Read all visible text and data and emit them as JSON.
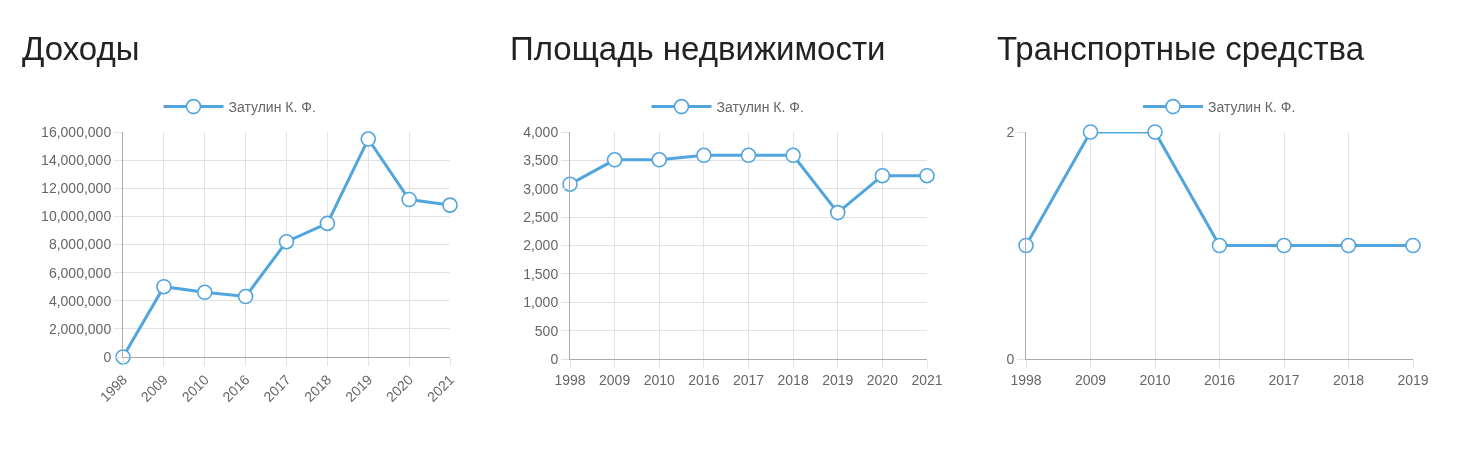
{
  "chart_data": [
    {
      "type": "line",
      "title": "Доходы",
      "categories": [
        "1998",
        "2009",
        "2010",
        "2016",
        "2017",
        "2018",
        "2019",
        "2020",
        "2021"
      ],
      "series": [
        {
          "name": "Затулин К. Ф.",
          "color": "#51a5de",
          "values": [
            0,
            5000000,
            4600000,
            4300000,
            8200000,
            9500000,
            15500000,
            11200000,
            10800000
          ]
        }
      ],
      "ylim": [
        0,
        16000000
      ],
      "yticks": [
        0,
        {
          "value": 2000000,
          "label": "2,000,000"
        },
        {
          "value": 4000000,
          "label": "4,000,000"
        },
        {
          "value": 6000000,
          "label": "6,000,000"
        },
        {
          "value": 8000000,
          "label": "8,000,000"
        },
        {
          "value": 10000000,
          "label": "10,000,000"
        },
        {
          "value": 12000000,
          "label": "12,000,000"
        },
        {
          "value": 14000000,
          "label": "14,000,000"
        },
        {
          "value": 16000000,
          "label": "16,000,000"
        }
      ],
      "grid": true,
      "legend": "top",
      "marker": "circle"
    },
    {
      "type": "line",
      "title": "Площадь недвижимости",
      "categories": [
        "1998",
        "2009",
        "2010",
        "2016",
        "2017",
        "2018",
        "2019",
        "2020",
        "2021"
      ],
      "series": [
        {
          "name": "Затулин К. Ф.",
          "color": "#51a5de",
          "values": [
            3080,
            3510,
            3510,
            3590,
            3590,
            3590,
            2580,
            3230,
            3230
          ]
        }
      ],
      "ylim": [
        0,
        4000
      ],
      "yticks": [
        0,
        500,
        {
          "value": 1000,
          "label": "1,000"
        },
        {
          "value": 1500,
          "label": "1,500"
        },
        {
          "value": 2000,
          "label": "2,000"
        },
        {
          "value": 2500,
          "label": "2,500"
        },
        {
          "value": 3000,
          "label": "3,000"
        },
        {
          "value": 3500,
          "label": "3,500"
        },
        {
          "value": 4000,
          "label": "4,000"
        }
      ],
      "grid": true,
      "legend": "top",
      "marker": "circle"
    },
    {
      "type": "line",
      "title": "Транспортные средства",
      "categories": [
        "1998",
        "2009",
        "2010",
        "2016",
        "2017",
        "2018",
        "2019"
      ],
      "series": [
        {
          "name": "Затулин К. Ф.",
          "color": "#51a5de",
          "values": [
            1,
            2,
            2,
            1,
            1,
            1,
            1
          ]
        }
      ],
      "ylim": [
        0,
        2
      ],
      "yticks": [
        0,
        2
      ],
      "grid": true,
      "legend": "top",
      "marker": "circle"
    }
  ]
}
